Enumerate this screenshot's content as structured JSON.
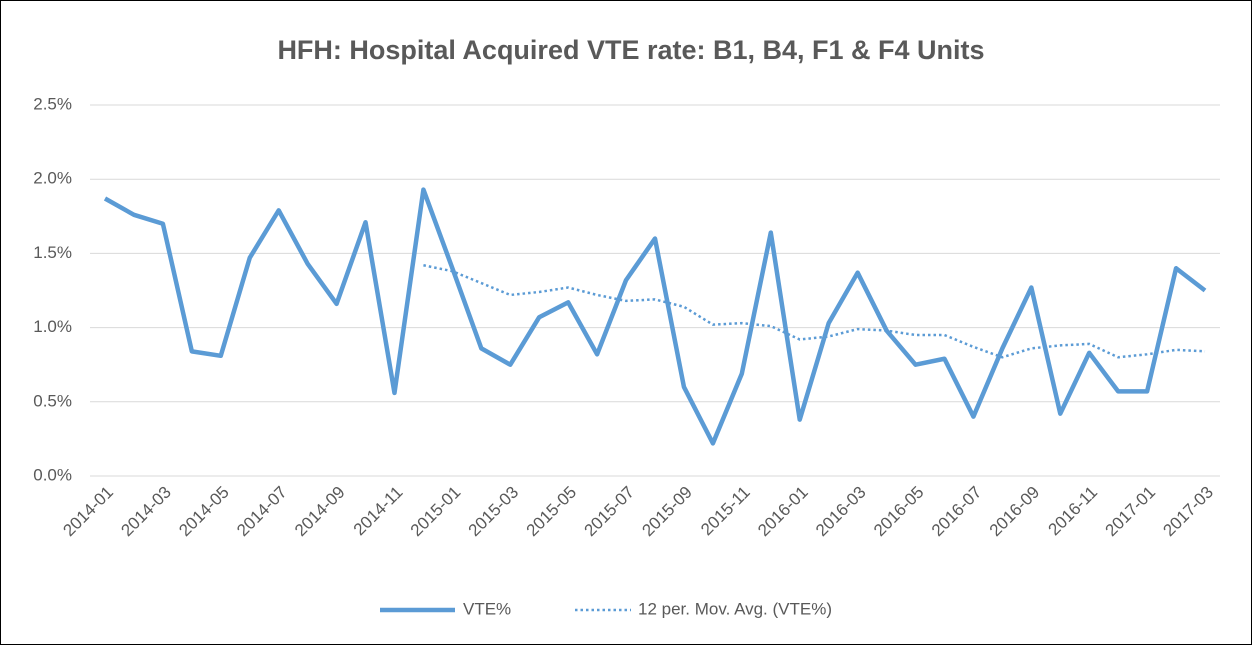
{
  "chart_data": {
    "type": "line",
    "title": "HFH: Hospital Acquired VTE rate: B1, B4, F1 & F4 Units",
    "categories": [
      "2014-01",
      null,
      "2014-03",
      null,
      "2014-05",
      null,
      "2014-07",
      null,
      "2014-09",
      null,
      "2014-11",
      null,
      "2015-01",
      null,
      "2015-03",
      null,
      "2015-05",
      null,
      "2015-07",
      null,
      "2015-09",
      null,
      "2015-11",
      null,
      "2016-01",
      null,
      "2016-03",
      null,
      "2016-05",
      null,
      "2016-07",
      null,
      "2016-09",
      null,
      "2016-11",
      null,
      "2017-01",
      null,
      "2017-03"
    ],
    "series": [
      {
        "name": "VTE%",
        "color": "#5b9bd5",
        "line_style": "solid",
        "values": [
          1.87,
          1.76,
          1.7,
          0.84,
          0.81,
          1.47,
          1.79,
          1.43,
          1.16,
          1.71,
          0.56,
          1.93,
          1.4,
          0.86,
          0.75,
          1.07,
          1.17,
          0.82,
          1.32,
          1.6,
          0.6,
          0.22,
          0.69,
          1.64,
          0.38,
          1.03,
          1.37,
          0.98,
          0.75,
          0.79,
          0.4,
          0.86,
          1.27,
          0.42,
          0.83,
          0.57,
          0.57,
          1.4,
          1.25
        ]
      },
      {
        "name": "12 per. Mov. Avg. (VTE%)",
        "color": "#5b9bd5",
        "line_style": "dotted",
        "values": [
          null,
          null,
          null,
          null,
          null,
          null,
          null,
          null,
          null,
          null,
          null,
          1.42,
          1.38,
          1.3,
          1.22,
          1.24,
          1.27,
          1.22,
          1.18,
          1.19,
          1.14,
          1.02,
          1.03,
          1.01,
          0.92,
          0.94,
          0.99,
          0.98,
          0.95,
          0.95,
          0.87,
          0.8,
          0.86,
          0.88,
          0.89,
          0.8,
          0.82,
          0.85,
          0.84
        ]
      }
    ],
    "ylim": [
      0,
      2.5
    ],
    "yticks": [
      {
        "value": 0,
        "label": "0.0%"
      },
      {
        "value": 0.5,
        "label": "0.5%"
      },
      {
        "value": 1,
        "label": "1.0%"
      },
      {
        "value": 1.5,
        "label": "1.5%"
      },
      {
        "value": 2,
        "label": "2.0%"
      },
      {
        "value": 2.5,
        "label": "2.5%"
      }
    ],
    "grid": true,
    "legend": "bottom"
  }
}
